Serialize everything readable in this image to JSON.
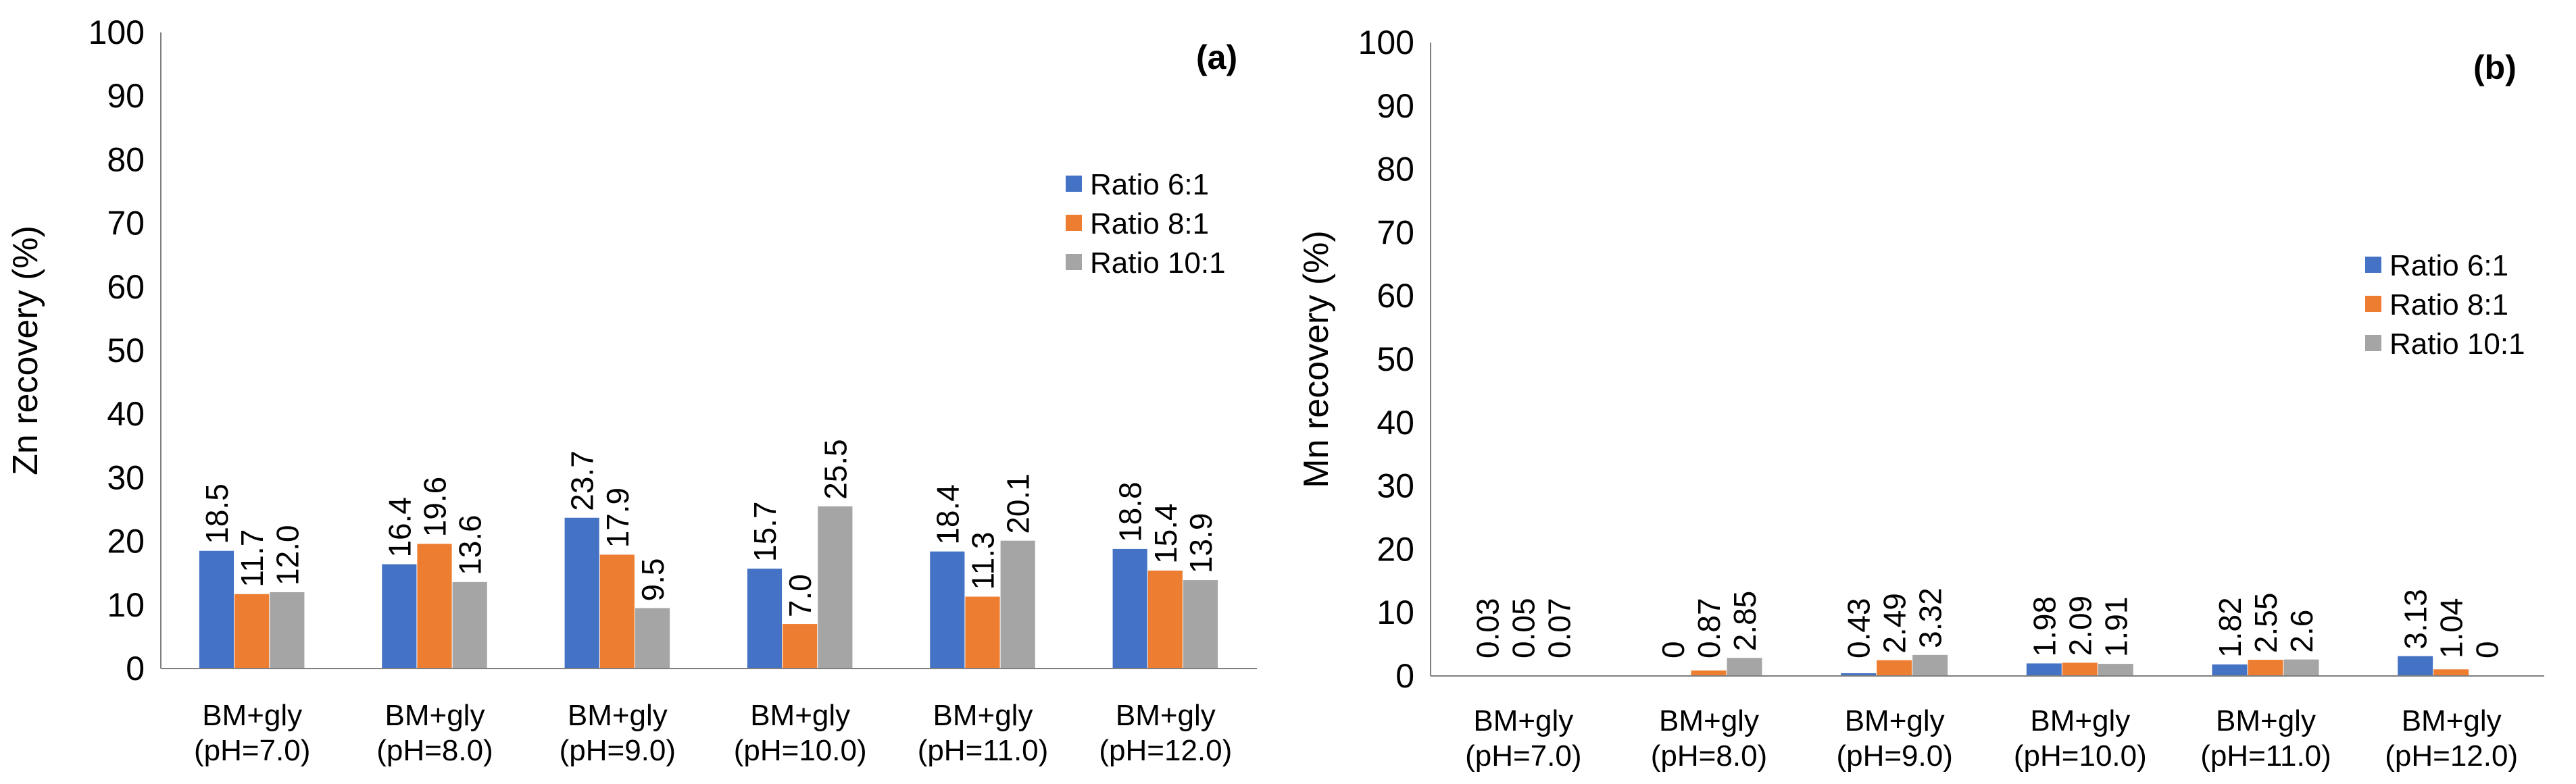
{
  "chart_data": [
    {
      "type": "bar",
      "panel_label": "(a)",
      "ylabel": "Zn recovery (%)",
      "xlabel": "",
      "ylim": [
        0,
        100
      ],
      "yticks": [
        "0",
        "10",
        "20",
        "30",
        "40",
        "50",
        "60",
        "70",
        "80",
        "90",
        "100"
      ],
      "grid": false,
      "legend_position": "right",
      "categories": [
        {
          "line1": "BM+gly",
          "line2": "(pH=7.0)"
        },
        {
          "line1": "BM+gly",
          "line2": "(pH=8.0)"
        },
        {
          "line1": "BM+gly",
          "line2": "(pH=9.0)"
        },
        {
          "line1": "BM+gly",
          "line2": "(pH=10.0)"
        },
        {
          "line1": "BM+gly",
          "line2": "(pH=11.0)"
        },
        {
          "line1": "BM+gly",
          "line2": "(pH=12.0)"
        }
      ],
      "series": [
        {
          "name": "Ratio 6:1",
          "color": "#4472C4",
          "values": [
            18.5,
            16.4,
            23.7,
            15.7,
            18.4,
            18.8
          ],
          "labels": [
            "18.5",
            "16.4",
            "23.7",
            "15.7",
            "18.4",
            "18.8"
          ]
        },
        {
          "name": "Ratio 8:1",
          "color": "#ED7D31",
          "values": [
            11.7,
            19.6,
            17.9,
            7.0,
            11.3,
            15.4
          ],
          "labels": [
            "11.7",
            "19.6",
            "17.9",
            "7.0",
            "11.3",
            "15.4"
          ]
        },
        {
          "name": "Ratio 10:1",
          "color": "#A5A5A5",
          "values": [
            12.0,
            13.6,
            9.5,
            25.5,
            20.1,
            13.9
          ],
          "labels": [
            "12.0",
            "13.6",
            "9.5",
            "25.5",
            "20.1",
            "13.9"
          ]
        }
      ]
    },
    {
      "type": "bar",
      "panel_label": "(b)",
      "ylabel": "Mn recovery (%)",
      "xlabel": "",
      "ylim": [
        0,
        100
      ],
      "yticks": [
        "0",
        "10",
        "20",
        "30",
        "40",
        "50",
        "60",
        "70",
        "80",
        "90",
        "100"
      ],
      "grid": false,
      "legend_position": "right",
      "categories": [
        {
          "line1": "BM+gly",
          "line2": "(pH=7.0)"
        },
        {
          "line1": "BM+gly",
          "line2": "(pH=8.0)"
        },
        {
          "line1": "BM+gly",
          "line2": "(pH=9.0)"
        },
        {
          "line1": "BM+gly",
          "line2": "(pH=10.0)"
        },
        {
          "line1": "BM+gly",
          "line2": "(pH=11.0)"
        },
        {
          "line1": "BM+gly",
          "line2": "(pH=12.0)"
        }
      ],
      "series": [
        {
          "name": "Ratio 6:1",
          "color": "#4472C4",
          "values": [
            0.03,
            0,
            0.43,
            1.98,
            1.82,
            3.13
          ],
          "labels": [
            "0.03",
            "0",
            "0.43",
            "1.98",
            "1.82",
            "3.13"
          ]
        },
        {
          "name": "Ratio 8:1",
          "color": "#ED7D31",
          "values": [
            0.05,
            0.87,
            2.49,
            2.09,
            2.55,
            1.04
          ],
          "labels": [
            "0.05",
            "0.87",
            "2.49",
            "2.09",
            "2.55",
            "1.04"
          ]
        },
        {
          "name": "Ratio 10:1",
          "color": "#A5A5A5",
          "values": [
            0.07,
            2.85,
            3.32,
            1.91,
            2.6,
            0
          ],
          "labels": [
            "0.07",
            "2.85",
            "3.32",
            "1.91",
            "2.6",
            "0"
          ]
        }
      ]
    }
  ]
}
